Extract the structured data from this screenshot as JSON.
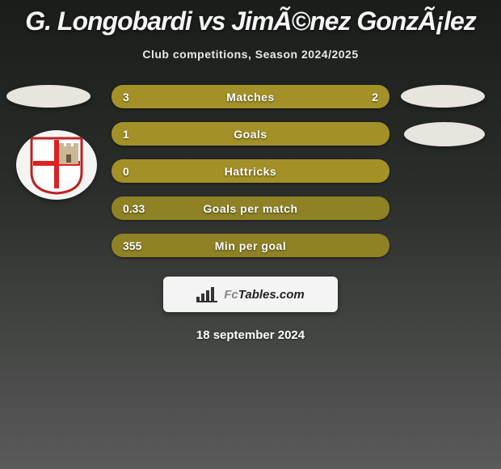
{
  "header": {
    "title": "G. Longobardi vs JimÃ©nez GonzÃ¡lez",
    "subtitle": "Club competitions, Season 2024/2025"
  },
  "colors": {
    "left_avatar_bg": "#e8e5df",
    "right_avatar_bg": "#e8e5df",
    "right_crest_bg": "#e8e5df",
    "bar_primary": "#a39128",
    "bar_secondary": "#8f8225",
    "footer_bg": "#f4f4f4",
    "footer_text": "#222"
  },
  "rows": [
    {
      "label": "Matches",
      "left": "3",
      "right": "2",
      "shade": "primary"
    },
    {
      "label": "Goals",
      "left": "1",
      "right": "",
      "shade": "primary"
    },
    {
      "label": "Hattricks",
      "left": "0",
      "right": "",
      "shade": "primary"
    },
    {
      "label": "Goals per match",
      "left": "0.33",
      "right": "",
      "shade": "secondary"
    },
    {
      "label": "Min per goal",
      "left": "355",
      "right": "",
      "shade": "secondary"
    }
  ],
  "footer": {
    "brand_a": "Fc",
    "brand_b": "Tables.com",
    "date": "18 september 2024"
  },
  "crest_svg": {
    "shield_border": "#d22",
    "cross": "#d22",
    "tower": "#bca98a"
  }
}
